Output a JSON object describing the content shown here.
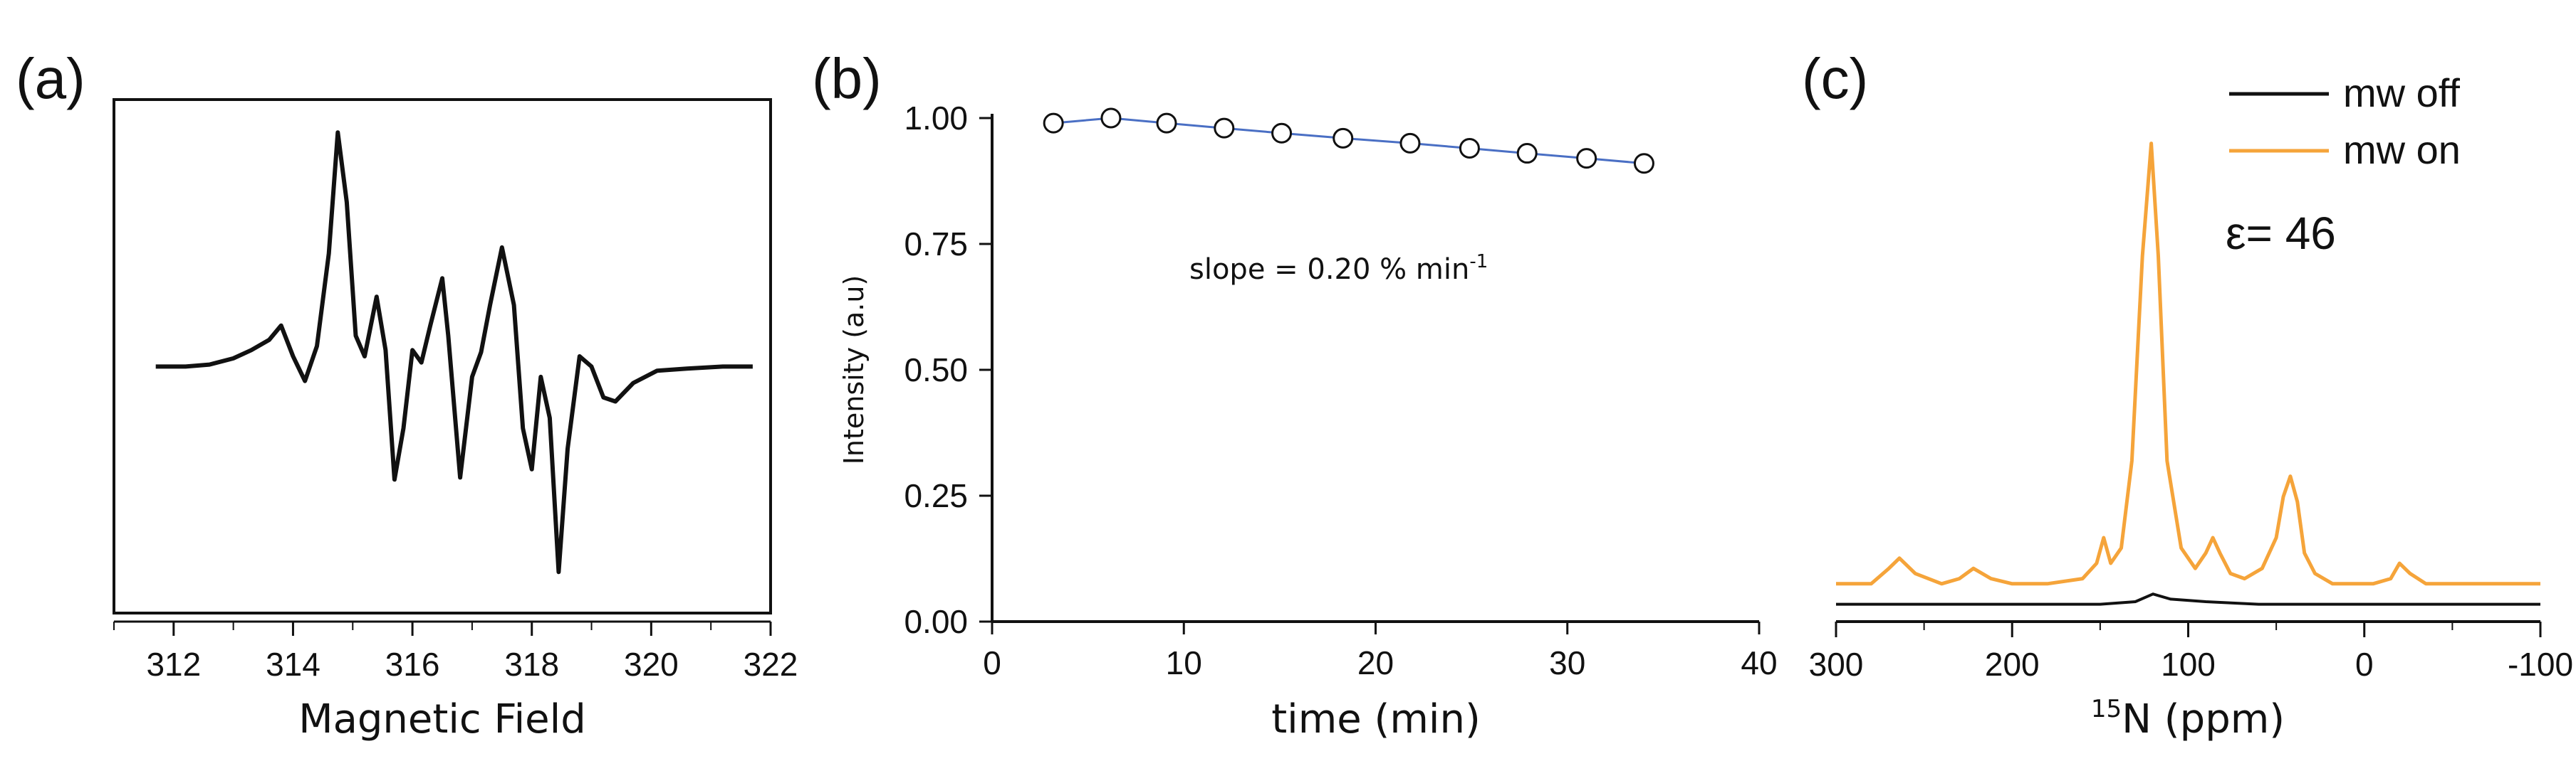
{
  "chart_data": [
    {
      "panel_label": "(a)",
      "type": "line",
      "xlabel": "Magnetic Field",
      "ylabel": "",
      "xlim": [
        311,
        322
      ],
      "xticks": [
        312,
        314,
        316,
        318,
        320,
        322
      ],
      "ylim": [
        -1.2,
        1.3
      ],
      "y_axis_shown": false,
      "grid": false,
      "series": [
        {
          "color": "#111111",
          "x": [
            311.7,
            312.2,
            312.6,
            313.0,
            313.3,
            313.6,
            313.8,
            314.0,
            314.2,
            314.4,
            314.6,
            314.75,
            314.9,
            315.05,
            315.2,
            315.4,
            315.55,
            315.7,
            315.85,
            316.0,
            316.15,
            316.3,
            316.5,
            316.6,
            316.8,
            317.0,
            317.15,
            317.3,
            317.5,
            317.7,
            317.85,
            318.0,
            318.15,
            318.3,
            318.45,
            318.6,
            318.8,
            319.0,
            319.2,
            319.4,
            319.7,
            320.1,
            320.6,
            321.2,
            321.7
          ],
          "y": [
            0.0,
            0.0,
            0.01,
            0.04,
            0.08,
            0.13,
            0.2,
            0.05,
            -0.07,
            0.1,
            0.55,
            1.14,
            0.8,
            0.15,
            0.05,
            0.34,
            0.08,
            -0.55,
            -0.3,
            0.08,
            0.02,
            0.2,
            0.43,
            0.15,
            -0.54,
            -0.05,
            0.07,
            0.3,
            0.58,
            0.3,
            -0.3,
            -0.5,
            -0.05,
            -0.25,
            -1.0,
            -0.4,
            0.05,
            0.0,
            -0.15,
            -0.17,
            -0.08,
            -0.02,
            -0.01,
            0.0,
            0.0
          ]
        }
      ]
    },
    {
      "panel_label": "(b)",
      "type": "scatter",
      "xlabel": "time (min)",
      "ylabel": "Intensity (a.u)",
      "xlim": [
        0,
        40
      ],
      "ylim": [
        0,
        1.0
      ],
      "xticks": [
        "0",
        "10",
        "20",
        "30",
        "40"
      ],
      "yticks": [
        "0.00",
        "0.25",
        "0.50",
        "0.75",
        "1.00"
      ],
      "grid": false,
      "annotation": {
        "text": "slope = 0.20 % min",
        "superscript": "-1"
      },
      "series": [
        {
          "marker": "open-circle",
          "line_color": "#4a6fc4",
          "x": [
            3.2,
            6.2,
            9.1,
            12.1,
            15.1,
            18.3,
            21.8,
            24.9,
            27.9,
            31.0,
            34.0
          ],
          "y": [
            0.99,
            1.0,
            0.99,
            0.98,
            0.97,
            0.96,
            0.95,
            0.94,
            0.93,
            0.92,
            0.91
          ]
        }
      ]
    },
    {
      "panel_label": "(c)",
      "type": "line",
      "xlabel_sup": "15",
      "xlabel": "N (ppm)",
      "xlim": [
        300,
        -100
      ],
      "x_reversed": true,
      "xticks": [
        "300",
        "200",
        "100",
        "0",
        "-100"
      ],
      "ylim": [
        0,
        1
      ],
      "y_axis_shown": false,
      "grid": false,
      "legend": "top-right",
      "annotation": "ε= 46",
      "series": [
        {
          "name": "mw off",
          "color": "#111111",
          "x": [
            300,
            250,
            200,
            150,
            130,
            120,
            110,
            90,
            60,
            20,
            -20,
            -60,
            -100
          ],
          "y": [
            0.07,
            0.07,
            0.07,
            0.07,
            0.075,
            0.09,
            0.08,
            0.075,
            0.07,
            0.07,
            0.07,
            0.07,
            0.07
          ]
        },
        {
          "name": "mw on",
          "color": "#f5a43a",
          "x": [
            300,
            280,
            270,
            264,
            255,
            240,
            230,
            222,
            212,
            200,
            180,
            160,
            152,
            148,
            144,
            138,
            132,
            126,
            121,
            117,
            112,
            104,
            96,
            90,
            86,
            82,
            76,
            68,
            58,
            50,
            46,
            42,
            38,
            34,
            28,
            18,
            5,
            -5,
            -15,
            -20,
            -26,
            -35,
            -50,
            -70,
            -100
          ],
          "y": [
            0.11,
            0.11,
            0.14,
            0.16,
            0.13,
            0.11,
            0.12,
            0.14,
            0.12,
            0.11,
            0.11,
            0.12,
            0.15,
            0.2,
            0.15,
            0.18,
            0.35,
            0.75,
            0.97,
            0.75,
            0.35,
            0.18,
            0.14,
            0.17,
            0.2,
            0.17,
            0.13,
            0.12,
            0.14,
            0.2,
            0.28,
            0.32,
            0.27,
            0.17,
            0.13,
            0.11,
            0.11,
            0.11,
            0.12,
            0.15,
            0.13,
            0.11,
            0.11,
            0.11,
            0.11
          ]
        }
      ]
    }
  ]
}
